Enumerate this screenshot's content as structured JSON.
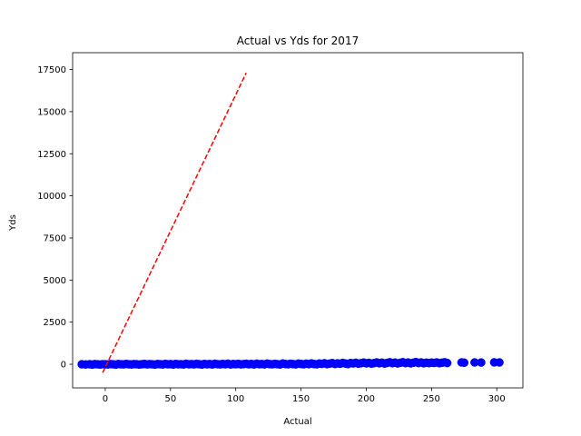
{
  "chart_data": {
    "type": "scatter",
    "title": "Actual vs Yds for 2017",
    "xlabel": "Actual",
    "ylabel": "Yds",
    "xlim": [
      -25,
      320
    ],
    "ylim": [
      -1400,
      18500
    ],
    "xticks": [
      0,
      50,
      100,
      150,
      200,
      250,
      300
    ],
    "yticks": [
      0,
      2500,
      5000,
      7500,
      10000,
      12500,
      15000,
      17500
    ],
    "xtick_labels": [
      "0",
      "50",
      "100",
      "150",
      "200",
      "250",
      "300"
    ],
    "ytick_labels": [
      "0",
      "2500",
      "5000",
      "7500",
      "10000",
      "12500",
      "15000",
      "17500"
    ],
    "grid": false,
    "series": [
      {
        "kind": "scatter",
        "color": "#0000ff",
        "points": [
          [
            -18,
            0
          ],
          [
            -15,
            -10
          ],
          [
            -12,
            5
          ],
          [
            -10,
            -20
          ],
          [
            -8,
            10
          ],
          [
            -6,
            0
          ],
          [
            -4,
            -15
          ],
          [
            -2,
            5
          ],
          [
            0,
            0
          ],
          [
            2,
            -10
          ],
          [
            4,
            10
          ],
          [
            6,
            0
          ],
          [
            8,
            -20
          ],
          [
            10,
            15
          ],
          [
            12,
            0
          ],
          [
            14,
            -5
          ],
          [
            16,
            20
          ],
          [
            18,
            0
          ],
          [
            20,
            -10
          ],
          [
            22,
            10
          ],
          [
            24,
            5
          ],
          [
            26,
            -15
          ],
          [
            28,
            0
          ],
          [
            30,
            20
          ],
          [
            32,
            -5
          ],
          [
            34,
            10
          ],
          [
            36,
            0
          ],
          [
            38,
            -20
          ],
          [
            40,
            15
          ],
          [
            42,
            5
          ],
          [
            44,
            -10
          ],
          [
            46,
            25
          ],
          [
            48,
            0
          ],
          [
            50,
            10
          ],
          [
            52,
            -15
          ],
          [
            54,
            20
          ],
          [
            56,
            0
          ],
          [
            58,
            5
          ],
          [
            60,
            -10
          ],
          [
            62,
            30
          ],
          [
            64,
            0
          ],
          [
            66,
            10
          ],
          [
            68,
            -5
          ],
          [
            70,
            25
          ],
          [
            72,
            5
          ],
          [
            74,
            -15
          ],
          [
            76,
            20
          ],
          [
            78,
            0
          ],
          [
            80,
            15
          ],
          [
            82,
            -10
          ],
          [
            84,
            30
          ],
          [
            86,
            5
          ],
          [
            88,
            -5
          ],
          [
            90,
            20
          ],
          [
            92,
            0
          ],
          [
            94,
            35
          ],
          [
            96,
            -10
          ],
          [
            98,
            15
          ],
          [
            100,
            5
          ],
          [
            102,
            25
          ],
          [
            104,
            -5
          ],
          [
            106,
            10
          ],
          [
            108,
            30
          ],
          [
            110,
            0
          ],
          [
            112,
            20
          ],
          [
            114,
            -10
          ],
          [
            116,
            35
          ],
          [
            118,
            5
          ],
          [
            120,
            15
          ],
          [
            122,
            -5
          ],
          [
            124,
            40
          ],
          [
            126,
            10
          ],
          [
            128,
            0
          ],
          [
            130,
            25
          ],
          [
            132,
            5
          ],
          [
            134,
            -10
          ],
          [
            136,
            45
          ],
          [
            138,
            15
          ],
          [
            140,
            0
          ],
          [
            142,
            30
          ],
          [
            144,
            10
          ],
          [
            146,
            -5
          ],
          [
            148,
            40
          ],
          [
            150,
            20
          ],
          [
            152,
            0
          ],
          [
            154,
            35
          ],
          [
            156,
            10
          ],
          [
            158,
            50
          ],
          [
            160,
            15
          ],
          [
            162,
            0
          ],
          [
            164,
            45
          ],
          [
            166,
            25
          ],
          [
            168,
            60
          ],
          [
            170,
            10
          ],
          [
            172,
            40
          ],
          [
            174,
            70
          ],
          [
            176,
            20
          ],
          [
            178,
            55
          ],
          [
            180,
            30
          ],
          [
            182,
            80
          ],
          [
            184,
            45
          ],
          [
            186,
            15
          ],
          [
            188,
            75
          ],
          [
            190,
            50
          ],
          [
            192,
            90
          ],
          [
            194,
            35
          ],
          [
            196,
            65
          ],
          [
            198,
            100
          ],
          [
            200,
            55
          ],
          [
            202,
            85
          ],
          [
            204,
            40
          ],
          [
            206,
            70
          ],
          [
            208,
            110
          ],
          [
            210,
            60
          ],
          [
            212,
            95
          ],
          [
            214,
            45
          ],
          [
            216,
            80
          ],
          [
            218,
            120
          ],
          [
            220,
            65
          ],
          [
            222,
            100
          ],
          [
            224,
            50
          ],
          [
            226,
            85
          ],
          [
            228,
            125
          ],
          [
            230,
            70
          ],
          [
            232,
            105
          ],
          [
            234,
            55
          ],
          [
            236,
            90
          ],
          [
            238,
            130
          ],
          [
            240,
            75
          ],
          [
            242,
            110
          ],
          [
            244,
            60
          ],
          [
            246,
            95
          ],
          [
            248,
            70
          ],
          [
            250,
            100
          ],
          [
            252,
            80
          ],
          [
            254,
            110
          ],
          [
            256,
            65
          ],
          [
            258,
            90
          ],
          [
            260,
            120
          ],
          [
            262,
            75
          ],
          [
            273,
            110
          ],
          [
            275,
            95
          ],
          [
            283,
            110
          ],
          [
            288,
            105
          ],
          [
            298,
            115
          ],
          [
            302,
            110
          ]
        ]
      },
      {
        "kind": "line",
        "color": "#ff0000",
        "dash": "dashed",
        "points": [
          [
            -2,
            -500
          ],
          [
            108,
            17300
          ]
        ]
      }
    ]
  }
}
